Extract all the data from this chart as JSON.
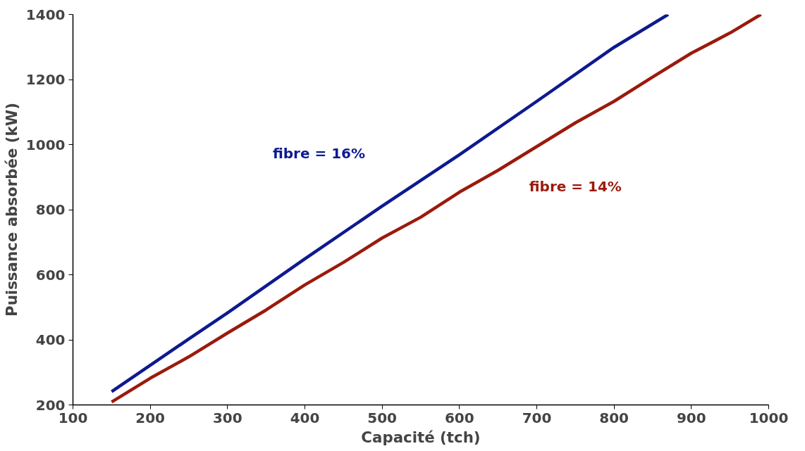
{
  "chart_data": {
    "type": "line",
    "xlabel": "Capacité (tch)",
    "ylabel": "Puissance absorbée (kW)",
    "xlim": [
      100,
      1000
    ],
    "ylim": [
      200,
      1400
    ],
    "xticks": [
      100,
      200,
      300,
      400,
      500,
      600,
      700,
      800,
      900,
      1000
    ],
    "yticks": [
      200,
      400,
      600,
      800,
      1000,
      1200,
      1400
    ],
    "grid": false,
    "marker": "none",
    "line_style": "solid",
    "series": [
      {
        "name": "fibre = 16%",
        "color": "#0d1a8f",
        "x": [
          150,
          200,
          250,
          300,
          400,
          500,
          600,
          700,
          800,
          870
        ],
        "values": [
          241,
          322,
          403,
          483,
          649,
          811,
          969,
          1133,
          1299,
          1400
        ]
      },
      {
        "name": "fibre = 14%",
        "color": "#9b1a0c",
        "x": [
          150,
          200,
          250,
          300,
          350,
          400,
          450,
          500,
          550,
          600,
          650,
          700,
          750,
          800,
          850,
          900,
          950,
          990
        ],
        "values": [
          209,
          282,
          348,
          421,
          492,
          569,
          638,
          713,
          777,
          854,
          921,
          994,
          1067,
          1133,
          1208,
          1281,
          1343,
          1400
        ]
      }
    ]
  }
}
